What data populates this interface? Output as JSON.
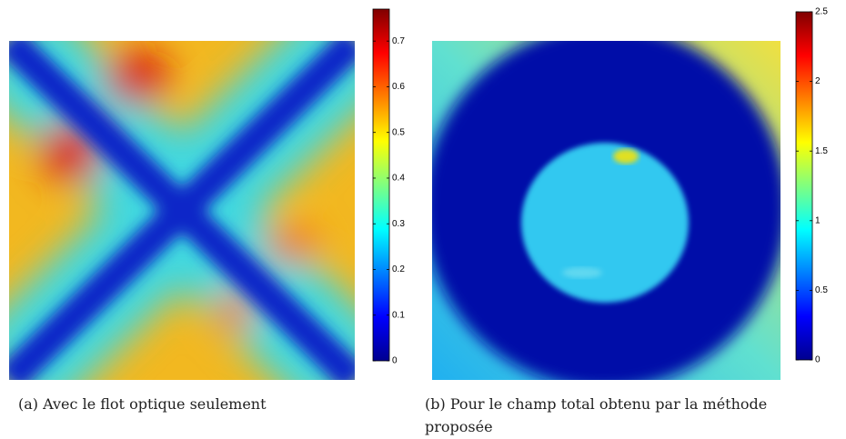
{
  "chart_data": [
    {
      "type": "heatmap",
      "caption": "(a) Avec le flot optique seulement",
      "clim": [
        0,
        0.77
      ],
      "cticks": [
        0,
        0.1,
        0.2,
        0.3,
        0.4,
        0.5,
        0.6,
        0.7
      ]
    },
    {
      "type": "heatmap",
      "caption": "(b) Pour le champ total obtenu par la méthode proposée",
      "clim": [
        0,
        2.5
      ],
      "cticks": [
        0,
        0.5,
        1,
        1.5,
        2,
        2.5
      ]
    }
  ]
}
